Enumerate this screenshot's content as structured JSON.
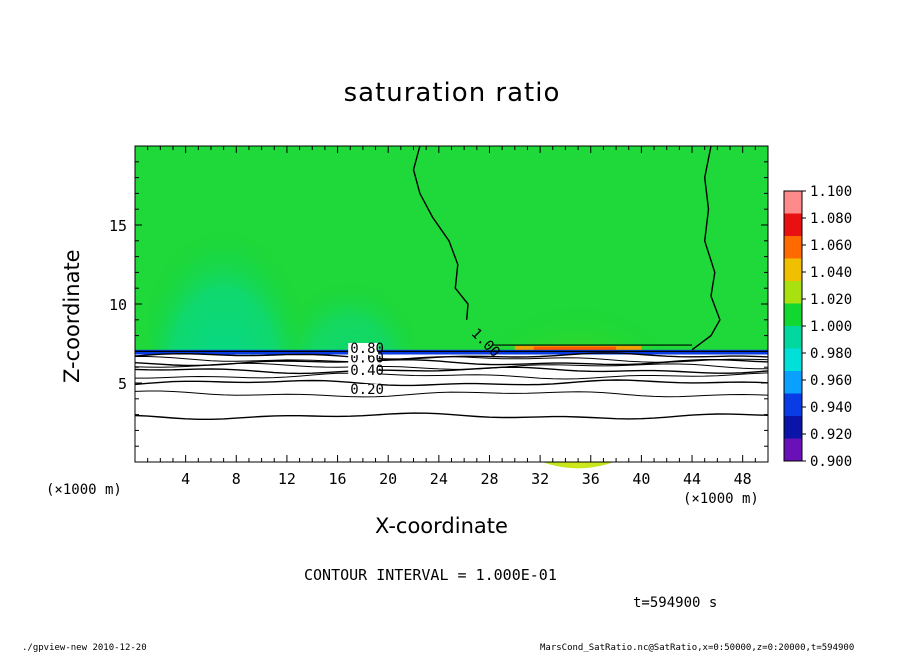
{
  "figure": {
    "title": "saturation ratio",
    "contour_interval": "CONTOUR INTERVAL = 1.000E-01",
    "time_label": "t=594900 s",
    "footer_left": "./gpview-new  2010-12-20",
    "footer_right": "MarsCond_SatRatio.nc@SatRatio,x=0:50000,z=0:20000,t=594900"
  },
  "chart_data": {
    "type": "heatmap",
    "title": "saturation ratio",
    "xlabel": "X-coordinate",
    "ylabel": "Z-coordinate",
    "x_unit": "(×1000 m)",
    "xlim": [
      0,
      50
    ],
    "ylim": [
      0,
      20
    ],
    "x_ticks": [
      4,
      8,
      12,
      16,
      20,
      24,
      28,
      32,
      36,
      40,
      44,
      48
    ],
    "y_ticks": [
      5,
      10,
      15
    ],
    "colorbar": {
      "levels": [
        0.9,
        0.92,
        0.94,
        0.96,
        0.98,
        1.0,
        1.02,
        1.04,
        1.06,
        1.08,
        1.1
      ],
      "labels": [
        "0.900",
        "0.920",
        "0.940",
        "0.960",
        "0.980",
        "1.000",
        "1.020",
        "1.040",
        "1.060",
        "1.080",
        "1.100"
      ],
      "colors": [
        "#6a10b8",
        "#0a14a8",
        "#0a3ce6",
        "#0aa0ff",
        "#00e0d8",
        "#00d8a0",
        "#10d830",
        "#a8e010",
        "#f0c000",
        "#ff6a00",
        "#e81010",
        "#ff8a8a"
      ]
    },
    "field_description_values": {
      "saturated_layer_base_z": 7.0,
      "near_surface_min": 0.0,
      "upper_region_value": 1.0
    },
    "contour_labels": [
      {
        "text": "0.20",
        "x": 17.0,
        "z": 4.3
      },
      {
        "text": "0.40",
        "x": 17.0,
        "z": 5.5
      },
      {
        "text": "0.60",
        "x": 17.0,
        "z": 6.3
      },
      {
        "text": "0.80",
        "x": 17.0,
        "z": 6.9
      },
      {
        "text": "1.00",
        "x": 26.5,
        "z": 8.1
      }
    ],
    "contour_levels": [
      0.1,
      0.2,
      0.3,
      0.4,
      0.5,
      0.6,
      0.7,
      0.8,
      0.9,
      1.0
    ]
  }
}
